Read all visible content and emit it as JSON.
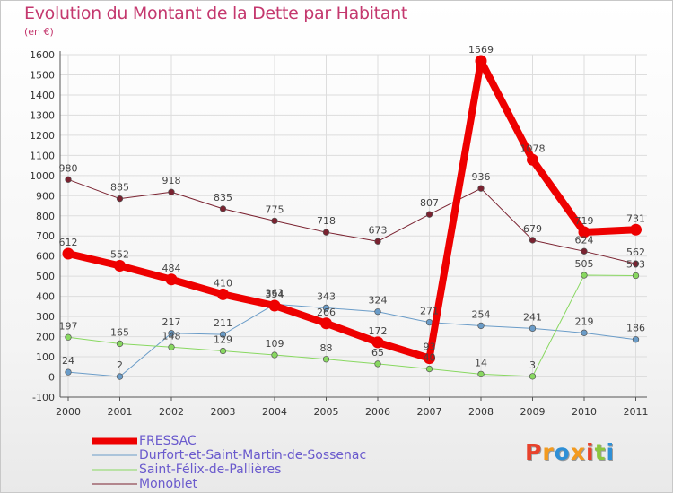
{
  "title": "Evolution du Montant de la Dette par Habitant",
  "subtitle": "(en €)",
  "chart_data": {
    "type": "line",
    "title": "Evolution du Montant de la Dette par Habitant",
    "ylabel": "(en €)",
    "xlabel": "",
    "ylim": [
      -100,
      1600
    ],
    "yticks": [
      -100,
      0,
      100,
      200,
      300,
      400,
      500,
      600,
      700,
      800,
      900,
      1000,
      1100,
      1200,
      1300,
      1400,
      1500,
      1600
    ],
    "categories": [
      "2000",
      "2001",
      "2002",
      "2003",
      "2004",
      "2005",
      "2006",
      "2007",
      "2008",
      "2009",
      "2010",
      "2011"
    ],
    "grid": true,
    "legend_position": "bottom-left",
    "series": [
      {
        "name": "FRESSAC",
        "color": "#ee0000",
        "values": [
          612,
          552,
          484,
          410,
          354,
          266,
          172,
          93,
          1569,
          1078,
          719,
          731
        ]
      },
      {
        "name": "Durfort-et-Saint-Martin-de-Sossenac",
        "color": "#6a9cc8",
        "values": [
          24,
          2,
          217,
          211,
          361,
          343,
          324,
          271,
          254,
          241,
          219,
          186
        ]
      },
      {
        "name": "Saint-Félix-de-Pallières",
        "color": "#88d860",
        "values": [
          197,
          165,
          148,
          129,
          109,
          88,
          65,
          40,
          14,
          3,
          505,
          503
        ]
      },
      {
        "name": "Monoblet",
        "color": "#7a2230",
        "values": [
          980,
          885,
          918,
          835,
          775,
          718,
          673,
          807,
          936,
          679,
          624,
          562
        ]
      }
    ]
  },
  "logo": {
    "text": "Proxiti",
    "colors": [
      "#e8422c",
      "#f39a1e",
      "#2e8fd6",
      "#f39a1e",
      "#e8422c",
      "#8cc63f",
      "#2e8fd6"
    ]
  }
}
